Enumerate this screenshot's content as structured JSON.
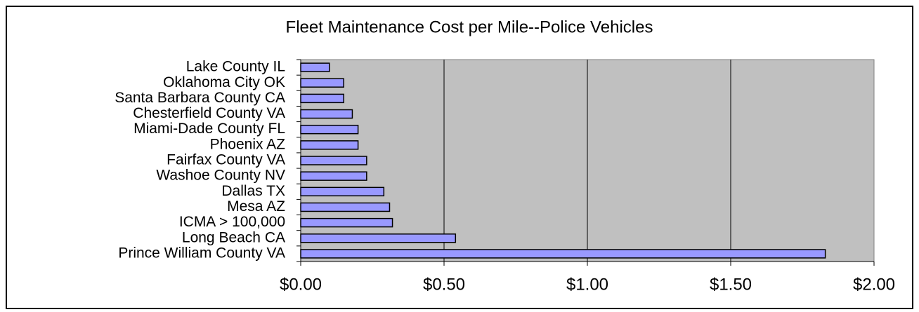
{
  "chart_data": {
    "type": "bar",
    "orientation": "horizontal",
    "title": "Fleet Maintenance Cost per Mile--Police Vehicles",
    "categories": [
      "Lake County IL",
      "Oklahoma City OK",
      "Santa Barbara County CA",
      "Chesterfield County VA",
      "Miami-Dade County FL",
      "Phoenix AZ",
      "Fairfax County VA",
      "Washoe County NV",
      "Dallas TX",
      "Mesa AZ",
      "ICMA > 100,000",
      "Long Beach CA",
      "Prince William County VA"
    ],
    "values": [
      0.1,
      0.15,
      0.15,
      0.18,
      0.2,
      0.2,
      0.23,
      0.23,
      0.29,
      0.31,
      0.32,
      0.54,
      1.83
    ],
    "color": "#9999ff",
    "xlim": [
      0,
      2
    ],
    "xticks": [
      {
        "value": 0,
        "label": "$0.00"
      },
      {
        "value": 0.5,
        "label": "$0.50"
      },
      {
        "value": 1,
        "label": "$1.00"
      },
      {
        "value": 1.5,
        "label": "$1.50"
      },
      {
        "value": 2,
        "label": "$2.00"
      }
    ],
    "grid": true
  }
}
